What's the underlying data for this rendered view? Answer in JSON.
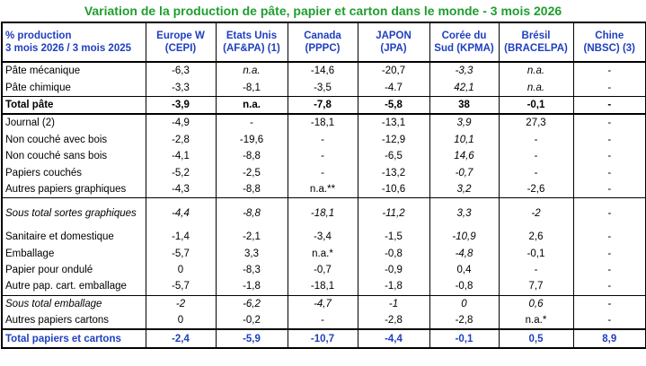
{
  "title": "Variation de la production de pâte, papier et carton dans le monde - 3 mois 2026",
  "table": {
    "header": [
      "% production\n3 mois 2026 / 3 mois 2025",
      "Europe  W\n(CEPI)",
      "Etats Unis\n(AF&PA) (1)",
      "Canada\n(PPPC)",
      "JAPON\n(JPA)",
      "Corée du\nSud  (KPMA)",
      "Brésil\n(BRACELPA)",
      "Chine\n(NBSC) (3)"
    ],
    "rows": [
      [
        "Pâte mécanique",
        "-6,3",
        "n.a.",
        "-14,6",
        "-20,7",
        "-3,3",
        "n.a.",
        "-"
      ],
      [
        "Pâte chimique",
        "-3,3",
        "-8,1",
        "-3,5",
        "-4.7",
        "42,1",
        "n.a.",
        "-"
      ],
      [
        "Total pâte",
        "-3,9",
        "n.a.",
        "-7,8",
        "-5,8",
        "38",
        "-0,1",
        "-"
      ],
      [
        "Journal (2)",
        "-4,9",
        "-",
        "-18,1",
        "-13,1",
        "3,9",
        "27,3",
        "-"
      ],
      [
        "Non couché avec bois",
        "-2,8",
        "-19,6",
        "-",
        "-12,9",
        "10,1",
        "-",
        "-"
      ],
      [
        "Non couché sans bois",
        "-4,1",
        "-8,8",
        "-",
        "-6,5",
        "14,6",
        "-",
        "-"
      ],
      [
        "Papiers couchés",
        "-5,2",
        "-2,5",
        "-",
        "-13,2",
        "-0,7",
        "-",
        "-"
      ],
      [
        "Autres papiers graphiques",
        "-4,3",
        "-8,8",
        "n.a.**",
        "-10,6",
        "3,2",
        "-2,6",
        "-"
      ],
      [
        "Sous total sortes graphiques",
        "-4,4",
        "-8,8",
        "-18,1",
        "-11,2",
        "3,3",
        "-2",
        "-"
      ],
      [
        "Sanitaire et domestique",
        "-1,4",
        "-2,1",
        "-3,4",
        "-1,5",
        "-10,9",
        "2,6",
        "-"
      ],
      [
        "Emballage",
        "-5,7",
        "3,3",
        "n.a.*",
        "-0,8",
        "-4,8",
        "-0,1",
        "-"
      ],
      [
        "Papier pour ondulé",
        "0",
        "-8,3",
        "-0,7",
        "-0,9",
        "0,4",
        "-",
        "-"
      ],
      [
        "Autre pap. cart. emballage",
        "-5,7",
        "-1,8",
        "-18,1",
        "-1,8",
        "-0,8",
        "7,7",
        "-"
      ],
      [
        "Sous total emballage",
        "-2",
        "-6,2",
        "-4,7",
        "-1",
        "0",
        "0,6",
        "-"
      ],
      [
        "Autres papiers cartons",
        "0",
        "-0,2",
        "-",
        "-2,8",
        "-2,8",
        "n.a.*",
        "-"
      ],
      [
        "Total papiers et cartons",
        "-2,4",
        "-5,9",
        "-10,7",
        "-4,4",
        "-0,1",
        "0,5",
        "8,9"
      ]
    ]
  }
}
